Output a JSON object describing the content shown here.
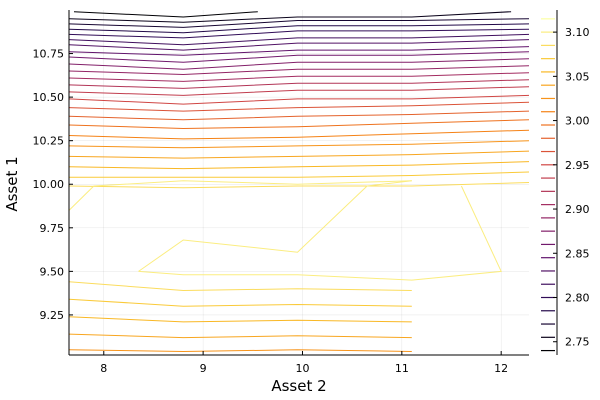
{
  "chart_data": {
    "type": "contour",
    "xlabel": "Asset 2",
    "ylabel": "Asset 1",
    "xlim": [
      7.65,
      12.28
    ],
    "ylim": [
      9.02,
      11.0
    ],
    "x_ticks": [
      8,
      9,
      10,
      11,
      12
    ],
    "x_tick_labels": [
      "8",
      "9",
      "10",
      "11",
      "12"
    ],
    "y_ticks": [
      9.25,
      9.5,
      9.75,
      10.0,
      10.25,
      10.5,
      10.75
    ],
    "y_tick_labels": [
      "9.25",
      "9.50",
      "9.75",
      "10.00",
      "10.25",
      "10.50",
      "10.75"
    ],
    "grid": true,
    "colorbar": {
      "range": [
        2.735,
        3.125
      ],
      "ticks": [
        2.75,
        2.8,
        2.85,
        2.9,
        2.95,
        3.0,
        3.05,
        3.1
      ],
      "tick_labels": [
        "2.75",
        "2.80",
        "2.85",
        "2.90",
        "2.95",
        "3.00",
        "3.05",
        "3.10"
      ],
      "levels": [
        2.74,
        2.755,
        2.77,
        2.785,
        2.8,
        2.815,
        2.83,
        2.845,
        2.86,
        2.875,
        2.89,
        2.905,
        2.92,
        2.935,
        2.95,
        2.965,
        2.98,
        2.995,
        3.01,
        3.025,
        3.04,
        3.055,
        3.07,
        3.085,
        3.1,
        3.115
      ]
    },
    "upper_lines": [
      {
        "level": 2.74,
        "points": [
          [
            7.7,
            10.99
          ],
          [
            8.8,
            10.96
          ],
          [
            9.55,
            10.99
          ]
        ]
      },
      {
        "level": 2.755,
        "points": [
          [
            7.65,
            10.95
          ],
          [
            8.8,
            10.93
          ],
          [
            9.95,
            10.96
          ],
          [
            11.1,
            10.96
          ],
          [
            12.1,
            10.99
          ]
        ]
      },
      {
        "level": 2.77,
        "points": [
          [
            7.65,
            10.92
          ],
          [
            8.8,
            10.9
          ],
          [
            9.95,
            10.94
          ],
          [
            11.1,
            10.94
          ],
          [
            12.28,
            10.95
          ]
        ]
      },
      {
        "level": 2.785,
        "points": [
          [
            7.65,
            10.89
          ],
          [
            8.8,
            10.87
          ],
          [
            9.95,
            10.91
          ],
          [
            11.1,
            10.91
          ],
          [
            12.28,
            10.92
          ]
        ]
      },
      {
        "level": 2.8,
        "points": [
          [
            7.65,
            10.86
          ],
          [
            8.8,
            10.84
          ],
          [
            9.95,
            10.88
          ],
          [
            11.1,
            10.88
          ],
          [
            12.28,
            10.89
          ]
        ]
      },
      {
        "level": 2.815,
        "points": [
          [
            7.65,
            10.83
          ],
          [
            8.8,
            10.8
          ],
          [
            9.95,
            10.84
          ],
          [
            11.1,
            10.84
          ],
          [
            12.28,
            10.86
          ]
        ]
      },
      {
        "level": 2.83,
        "points": [
          [
            7.65,
            10.8
          ],
          [
            8.8,
            10.77
          ],
          [
            9.95,
            10.81
          ],
          [
            11.1,
            10.81
          ],
          [
            12.28,
            10.83
          ]
        ]
      },
      {
        "level": 2.845,
        "points": [
          [
            7.65,
            10.76
          ],
          [
            8.8,
            10.74
          ],
          [
            9.95,
            10.77
          ],
          [
            11.1,
            10.77
          ],
          [
            12.28,
            10.79
          ]
        ]
      },
      {
        "level": 2.86,
        "points": [
          [
            7.65,
            10.73
          ],
          [
            8.8,
            10.7
          ],
          [
            9.95,
            10.74
          ],
          [
            11.1,
            10.74
          ],
          [
            12.28,
            10.76
          ]
        ]
      },
      {
        "level": 2.875,
        "points": [
          [
            7.65,
            10.69
          ],
          [
            8.8,
            10.66
          ],
          [
            9.95,
            10.7
          ],
          [
            11.1,
            10.7
          ],
          [
            12.28,
            10.72
          ]
        ]
      },
      {
        "level": 2.89,
        "points": [
          [
            7.65,
            10.65
          ],
          [
            8.8,
            10.63
          ],
          [
            9.95,
            10.66
          ],
          [
            11.1,
            10.66
          ],
          [
            12.28,
            10.68
          ]
        ]
      },
      {
        "level": 2.905,
        "points": [
          [
            7.65,
            10.61
          ],
          [
            8.8,
            10.59
          ],
          [
            9.95,
            10.62
          ],
          [
            11.1,
            10.62
          ],
          [
            12.28,
            10.64
          ]
        ]
      },
      {
        "level": 2.92,
        "points": [
          [
            7.65,
            10.57
          ],
          [
            8.8,
            10.55
          ],
          [
            9.95,
            10.58
          ],
          [
            11.1,
            10.58
          ],
          [
            12.28,
            10.6
          ]
        ]
      },
      {
        "level": 2.935,
        "points": [
          [
            7.65,
            10.53
          ],
          [
            8.8,
            10.51
          ],
          [
            9.95,
            10.54
          ],
          [
            11.1,
            10.54
          ],
          [
            12.28,
            10.56
          ]
        ]
      },
      {
        "level": 2.95,
        "points": [
          [
            7.65,
            10.49
          ],
          [
            8.8,
            10.46
          ],
          [
            9.95,
            10.49
          ],
          [
            11.1,
            10.49
          ],
          [
            12.28,
            10.51
          ]
        ]
      },
      {
        "level": 2.965,
        "points": [
          [
            7.65,
            10.44
          ],
          [
            8.8,
            10.42
          ],
          [
            9.95,
            10.44
          ],
          [
            11.1,
            10.45
          ],
          [
            12.28,
            10.47
          ]
        ]
      },
      {
        "level": 2.98,
        "points": [
          [
            7.65,
            10.39
          ],
          [
            8.8,
            10.37
          ],
          [
            9.95,
            10.39
          ],
          [
            11.1,
            10.4
          ],
          [
            12.28,
            10.42
          ]
        ]
      },
      {
        "level": 2.995,
        "points": [
          [
            7.65,
            10.34
          ],
          [
            8.8,
            10.32
          ],
          [
            9.95,
            10.33
          ],
          [
            11.1,
            10.35
          ],
          [
            12.28,
            10.37
          ]
        ]
      },
      {
        "level": 3.01,
        "points": [
          [
            7.65,
            10.28
          ],
          [
            8.8,
            10.26
          ],
          [
            9.95,
            10.27
          ],
          [
            11.1,
            10.29
          ],
          [
            12.28,
            10.31
          ]
        ]
      },
      {
        "level": 3.025,
        "points": [
          [
            7.65,
            10.22
          ],
          [
            8.8,
            10.21
          ],
          [
            9.95,
            10.22
          ],
          [
            11.1,
            10.23
          ],
          [
            12.28,
            10.25
          ]
        ]
      },
      {
        "level": 3.04,
        "points": [
          [
            7.65,
            10.16
          ],
          [
            8.8,
            10.15
          ],
          [
            9.95,
            10.16
          ],
          [
            11.1,
            10.17
          ],
          [
            12.28,
            10.19
          ]
        ]
      },
      {
        "level": 3.055,
        "points": [
          [
            7.65,
            10.1
          ],
          [
            8.8,
            10.09
          ],
          [
            9.95,
            10.1
          ],
          [
            11.1,
            10.11
          ],
          [
            12.28,
            10.13
          ]
        ]
      },
      {
        "level": 3.07,
        "points": [
          [
            7.65,
            10.04
          ],
          [
            8.8,
            10.04
          ],
          [
            9.95,
            10.04
          ],
          [
            11.1,
            10.05
          ],
          [
            12.28,
            10.07
          ]
        ]
      },
      {
        "level": 3.085,
        "points": [
          [
            7.65,
            9.99
          ],
          [
            8.8,
            9.98
          ],
          [
            9.95,
            9.99
          ],
          [
            11.1,
            9.99
          ],
          [
            12.28,
            10.01
          ]
        ]
      },
      {
        "level": 3.1,
        "points": [
          [
            7.65,
            9.85
          ],
          [
            7.9,
            9.99
          ],
          [
            8.8,
            10.02
          ],
          [
            9.95,
            10.0
          ],
          [
            11.1,
            10.02
          ]
        ]
      }
    ],
    "lower_lines": [
      {
        "level": 3.1,
        "points": [
          [
            8.35,
            9.5
          ],
          [
            8.8,
            9.68
          ],
          [
            9.95,
            9.61
          ],
          [
            10.65,
            9.99
          ],
          [
            11.1,
            10.02
          ]
        ]
      },
      {
        "level": 3.1,
        "points": [
          [
            11.6,
            9.99
          ],
          [
            12.0,
            9.5
          ],
          [
            11.1,
            9.45
          ],
          [
            9.95,
            9.48
          ],
          [
            8.8,
            9.48
          ],
          [
            8.35,
            9.5
          ]
        ]
      },
      {
        "level": 3.085,
        "points": [
          [
            7.65,
            9.44
          ],
          [
            8.8,
            9.39
          ],
          [
            9.95,
            9.4
          ],
          [
            11.1,
            9.39
          ]
        ]
      },
      {
        "level": 3.07,
        "points": [
          [
            7.65,
            9.34
          ],
          [
            8.8,
            9.3
          ],
          [
            9.95,
            9.31
          ],
          [
            11.1,
            9.3
          ]
        ]
      },
      {
        "level": 3.055,
        "points": [
          [
            7.65,
            9.24
          ],
          [
            8.8,
            9.21
          ],
          [
            9.95,
            9.22
          ],
          [
            11.1,
            9.21
          ]
        ]
      },
      {
        "level": 3.04,
        "points": [
          [
            7.65,
            9.14
          ],
          [
            8.8,
            9.12
          ],
          [
            9.95,
            9.13
          ],
          [
            11.1,
            9.12
          ]
        ]
      },
      {
        "level": 3.025,
        "points": [
          [
            7.65,
            9.05
          ],
          [
            8.8,
            9.04
          ],
          [
            9.95,
            9.05
          ],
          [
            11.1,
            9.04
          ]
        ]
      }
    ]
  }
}
